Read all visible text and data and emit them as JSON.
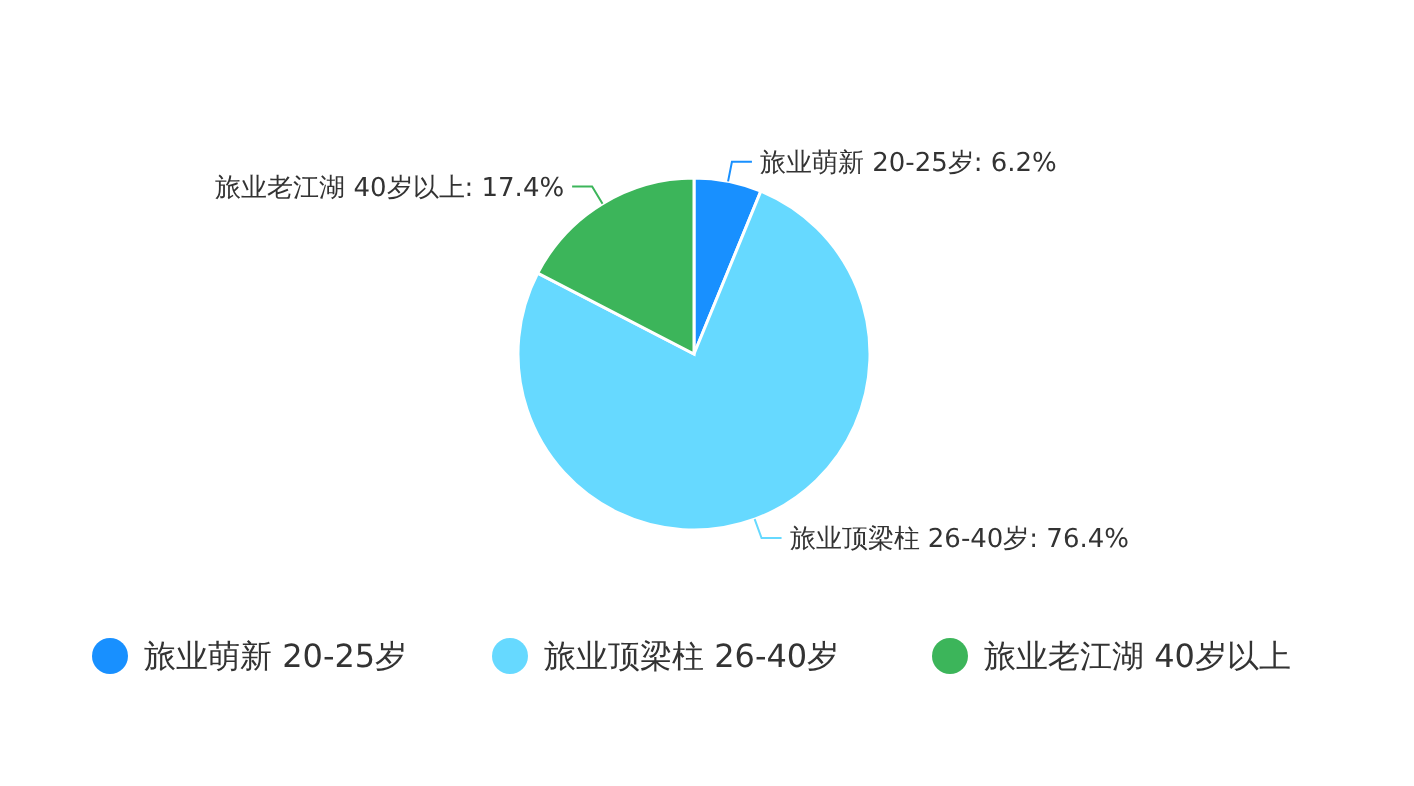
{
  "chart_data": {
    "type": "pie",
    "categories": [
      "旅业萌新 20-25岁",
      "旅业顶梁柱 26-40岁",
      "旅业老江湖 40岁以上"
    ],
    "values": [
      6.2,
      76.4,
      17.4
    ],
    "colors": [
      "#1890ff",
      "#66d9ff",
      "#3cb55a"
    ],
    "value_labels": [
      "旅业萌新 20-25岁: 6.2%",
      "旅业顶梁柱 26-40岁: 76.4%",
      "旅业老江湖 40岁以上: 17.4%"
    ],
    "legend": "bottom"
  }
}
